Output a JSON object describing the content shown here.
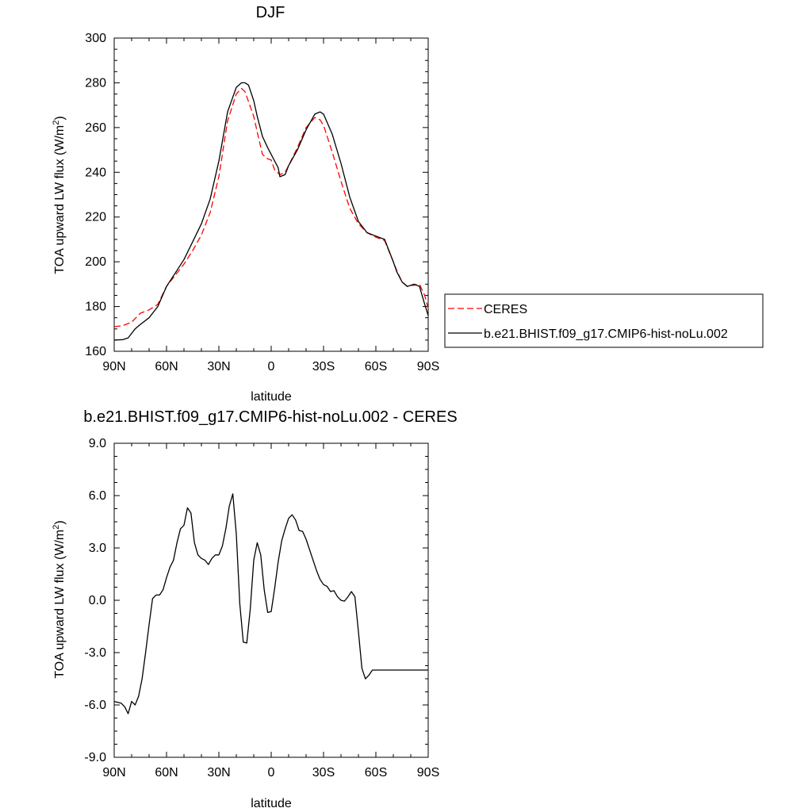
{
  "chart_data": [
    {
      "type": "line",
      "title": "DJF",
      "xlabel": "latitude",
      "ylabel": "TOA upward LW flux (W/m",
      "ylabel_superscript": "2",
      "ylabel_suffix": ")",
      "xlim": [
        90,
        -90
      ],
      "ylim": [
        160,
        300
      ],
      "xticks": [
        90,
        60,
        30,
        0,
        -30,
        -60,
        -90
      ],
      "xtick_labels": [
        "90N",
        "60N",
        "30N",
        "0",
        "30S",
        "60S",
        "90S"
      ],
      "yticks": [
        160,
        180,
        200,
        220,
        240,
        260,
        280,
        300
      ],
      "ytick_labels": [
        "160",
        "180",
        "200",
        "220",
        "240",
        "260",
        "280",
        "300"
      ],
      "legend_position": "right",
      "series": [
        {
          "name": "CERES",
          "color": "#ff0000",
          "dash": "dashed",
          "x": [
            90,
            85,
            80,
            75,
            70,
            65,
            60,
            55,
            50,
            45,
            40,
            35,
            30,
            25,
            20,
            17,
            15,
            10,
            8,
            5,
            2,
            0,
            -2,
            -5,
            -8,
            -10,
            -15,
            -20,
            -25,
            -28,
            -30,
            -35,
            -40,
            -45,
            -50,
            -55,
            -60,
            -65,
            -70,
            -72,
            -75,
            -78,
            -80,
            -82,
            -85,
            -88,
            -90
          ],
          "y": [
            171,
            171.5,
            173,
            177,
            178.5,
            181,
            189,
            194,
            199,
            205,
            212,
            222,
            238,
            263,
            275,
            277.5,
            276,
            265,
            258,
            248,
            246,
            245.5,
            241,
            239,
            240,
            243,
            251,
            260,
            264.5,
            263.5,
            261,
            249,
            236,
            224,
            217,
            213,
            211,
            209.5,
            200,
            196,
            191,
            189,
            189.5,
            189.5,
            190,
            185,
            179
          ]
        },
        {
          "name": "b.e21.BHIST.f09_g17.CMIP6-hist-noLu.002",
          "color": "#000000",
          "dash": "solid",
          "x": [
            90,
            85,
            82,
            80,
            78,
            75,
            70,
            65,
            60,
            55,
            50,
            45,
            40,
            35,
            30,
            25,
            20,
            17,
            15,
            13,
            10,
            8,
            5,
            2,
            0,
            -2,
            -4,
            -5,
            -8,
            -10,
            -15,
            -20,
            -25,
            -28,
            -30,
            -35,
            -40,
            -45,
            -50,
            -55,
            -60,
            -65,
            -70,
            -72,
            -75,
            -78,
            -80,
            -82,
            -85,
            -88,
            -90
          ],
          "y": [
            165,
            165.2,
            166,
            168,
            170,
            172,
            175,
            180,
            189,
            195,
            201,
            209,
            217,
            228,
            245,
            267,
            278,
            280,
            280,
            279,
            272,
            265,
            256,
            251,
            248,
            245,
            242,
            238,
            239,
            243,
            250,
            259,
            266,
            267,
            266,
            257,
            244,
            229,
            218,
            213,
            211.5,
            210,
            200,
            195.5,
            191,
            189,
            189.5,
            190,
            189,
            181,
            176
          ]
        }
      ]
    },
    {
      "type": "line",
      "title": "b.e21.BHIST.f09_g17.CMIP6-hist-noLu.002 - CERES",
      "xlabel": "latitude",
      "ylabel": "TOA upward LW flux (W/m",
      "ylabel_superscript": "2",
      "ylabel_suffix": ")",
      "xlim": [
        90,
        -90
      ],
      "ylim": [
        -9,
        9
      ],
      "xticks": [
        90,
        60,
        30,
        0,
        -30,
        -60,
        -90
      ],
      "xtick_labels": [
        "90N",
        "60N",
        "30N",
        "0",
        "30S",
        "60S",
        "90S"
      ],
      "yticks": [
        -9,
        -6,
        -3,
        0,
        3,
        6,
        9
      ],
      "ytick_labels": [
        "-9.0",
        "-6.0",
        "-3.0",
        "0.0",
        "3.0",
        "6.0",
        "9.0"
      ],
      "series": [
        {
          "color": "#000000",
          "dash": "solid",
          "x": [
            90,
            86,
            84,
            82,
            80,
            78,
            76,
            74,
            72,
            70,
            68,
            66,
            64,
            62,
            60,
            58,
            56,
            54,
            52,
            50,
            48,
            46,
            44,
            42,
            40,
            38,
            36,
            34,
            32,
            30,
            28,
            26,
            24,
            22,
            20,
            18,
            16,
            14,
            12,
            10,
            8,
            6,
            4,
            2,
            0,
            -2,
            -4,
            -6,
            -8,
            -10,
            -12,
            -14,
            -16,
            -18,
            -20,
            -22,
            -24,
            -26,
            -28,
            -30,
            -32,
            -34,
            -36,
            -38,
            -40,
            -42,
            -44,
            -46,
            -48,
            -50,
            -52,
            -54,
            -56,
            -58,
            -60,
            -62,
            -64,
            -66,
            -68,
            -70,
            -72,
            -74,
            -76,
            -78,
            -80,
            -82,
            -84,
            -86,
            -88,
            -90
          ],
          "y": [
            -5.8,
            -5.9,
            -6.1,
            -6.5,
            -5.8,
            -6.0,
            -5.5,
            -4.5,
            -3.0,
            -1.4,
            0.1,
            0.3,
            0.3,
            0.6,
            1.3,
            1.9,
            2.3,
            3.3,
            4.1,
            4.3,
            5.3,
            5.0,
            3.3,
            2.6,
            2.4,
            2.3,
            2.05,
            2.4,
            2.6,
            2.6,
            3.1,
            4.1,
            5.4,
            6.1,
            3.8,
            -0.2,
            -2.4,
            -2.45,
            -0.5,
            2.3,
            3.3,
            2.6,
            0.6,
            -0.7,
            -0.65,
            0.7,
            2.2,
            3.4,
            4.1,
            4.7,
            4.9,
            4.6,
            4.0,
            3.95,
            3.5,
            2.9,
            2.3,
            1.7,
            1.2,
            0.9,
            0.8,
            0.5,
            0.55,
            0.2,
            0.0,
            -0.05,
            0.2,
            0.5,
            0.2,
            -1.8,
            -3.9,
            -4.5,
            -4.3,
            -4.0,
            -4.0,
            -4.0,
            -4.0,
            -4.0,
            -4.0,
            -4.0,
            -4.0,
            -4.0,
            -4.0,
            -4.0,
            -4.0,
            -4.0,
            -4.0,
            -4.0,
            -4.0,
            -4.0
          ]
        }
      ]
    }
  ]
}
